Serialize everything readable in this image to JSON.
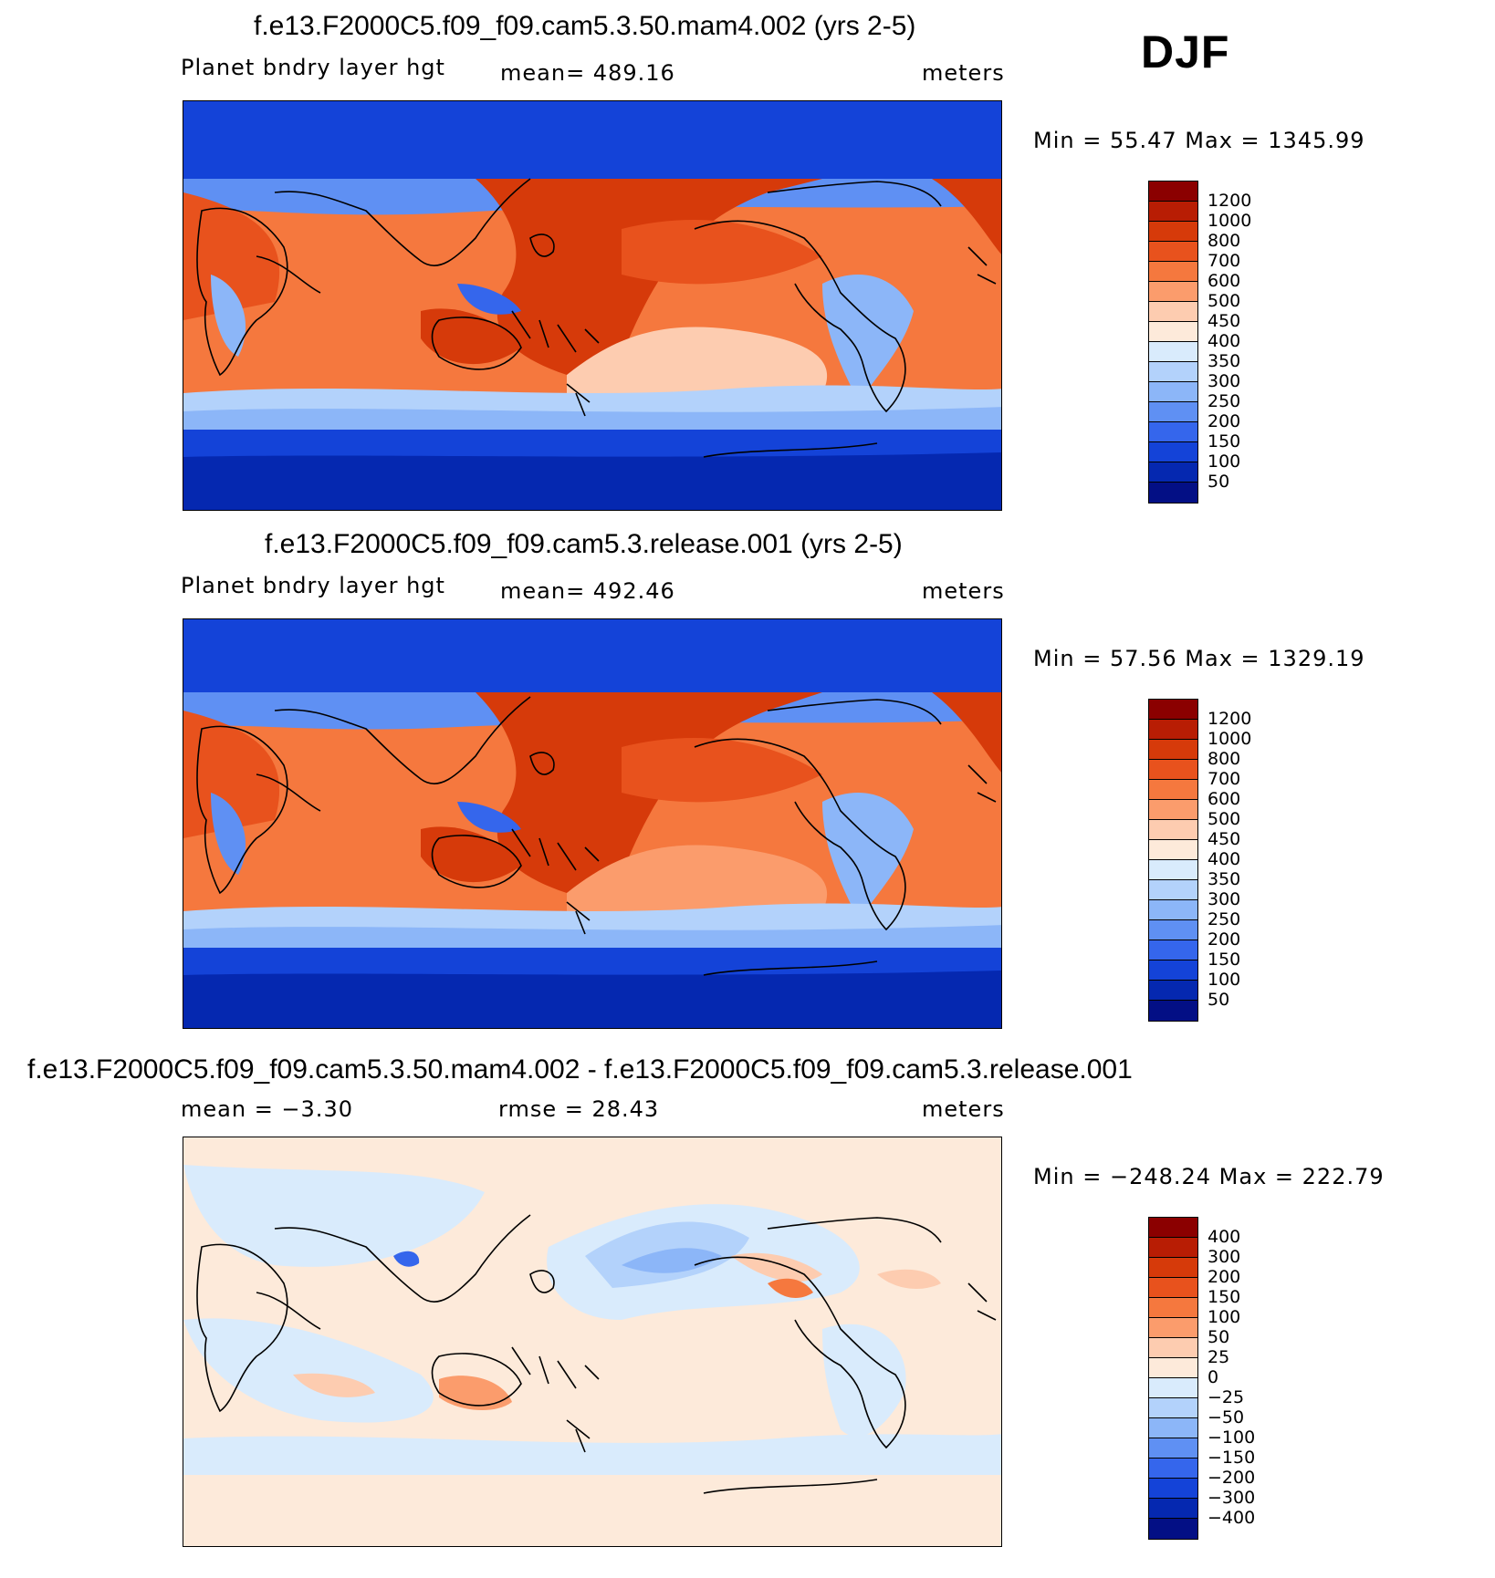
{
  "season": "DJF",
  "panels": [
    {
      "title": "f.e13.F2000C5.f09_f09.cam5.3.50.mam4.002 (yrs 2-5)",
      "variable": "Planet bndry layer hgt",
      "stat": "mean=  489.16",
      "units": "meters",
      "minmax": "Min =   55.47 Max = 1345.99"
    },
    {
      "title": "f.e13.F2000C5.f09_f09.cam5.3.release.001 (yrs 2-5)",
      "variable": "Planet bndry layer hgt",
      "stat": "mean=  492.46",
      "units": "meters",
      "minmax": "Min =   57.56 Max = 1329.19"
    },
    {
      "title": "f.e13.F2000C5.f09_f09.cam5.3.50.mam4.002 - f.e13.F2000C5.f09_f09.cam5.3.release.001",
      "variable": "mean =   −3.30",
      "stat": "rmse =   28.43",
      "units": "meters",
      "minmax": "Min = −248.24 Max = 222.79"
    }
  ],
  "colorbars": {
    "absolute": {
      "labels": [
        "1200",
        "1000",
        "800",
        "700",
        "600",
        "500",
        "450",
        "400",
        "350",
        "300",
        "250",
        "200",
        "150",
        "100",
        "50"
      ],
      "colors": [
        "#8b0000",
        "#b81d04",
        "#d63a0a",
        "#e8521d",
        "#f5783e",
        "#fb9c6c",
        "#fdccb0",
        "#fdeada",
        "#d9ebfc",
        "#b3d2fb",
        "#8cb6f8",
        "#5f90f3",
        "#3566ec",
        "#1443d8",
        "#0528b0",
        "#030f85"
      ]
    },
    "difference": {
      "labels": [
        "400",
        "300",
        "200",
        "150",
        "100",
        "50",
        "25",
        "0",
        "−25",
        "−50",
        "−100",
        "−150",
        "−200",
        "−300",
        "−400"
      ],
      "colors": [
        "#8b0000",
        "#b81d04",
        "#d63a0a",
        "#e8521d",
        "#f5783e",
        "#fb9c6c",
        "#fdccb0",
        "#fdeada",
        "#d9ebfc",
        "#b3d2fb",
        "#8cb6f8",
        "#5f90f3",
        "#3566ec",
        "#1443d8",
        "#0528b0",
        "#030f85"
      ]
    }
  }
}
